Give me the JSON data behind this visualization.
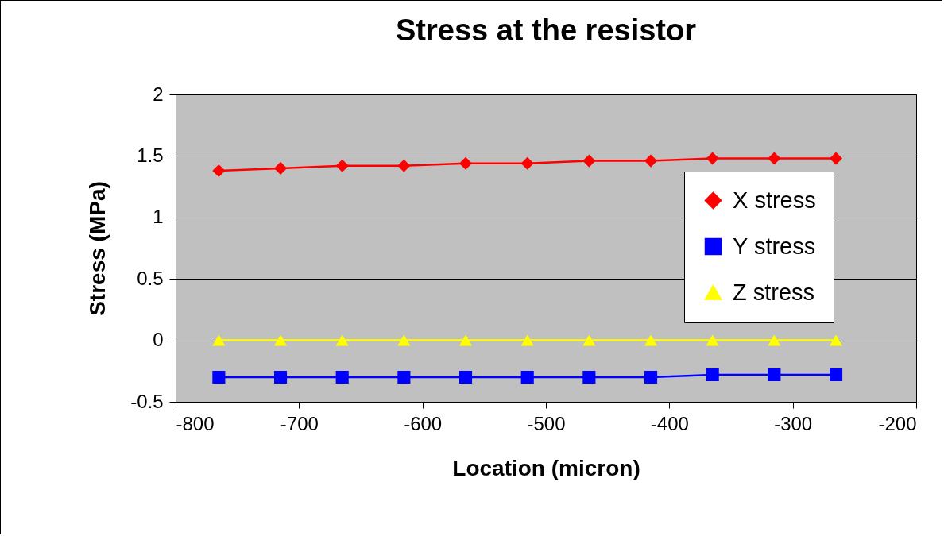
{
  "chart_data": {
    "type": "line",
    "title": "Stress at the resistor",
    "xlabel": "Location (micron)",
    "ylabel": "Stress (MPa)",
    "x": [
      -765,
      -715,
      -665,
      -615,
      -565,
      -515,
      -465,
      -415,
      -365,
      -315,
      -265
    ],
    "series": [
      {
        "name": "X stress",
        "color": "#ff0000",
        "marker": "diamond",
        "values": [
          1.38,
          1.4,
          1.42,
          1.42,
          1.44,
          1.44,
          1.46,
          1.46,
          1.48,
          1.48,
          1.48
        ]
      },
      {
        "name": "Y stress",
        "color": "#0000ff",
        "marker": "square",
        "values": [
          -0.3,
          -0.3,
          -0.3,
          -0.3,
          -0.3,
          -0.3,
          -0.3,
          -0.3,
          -0.28,
          -0.28,
          -0.28
        ]
      },
      {
        "name": "Z stress",
        "color": "#ffff00",
        "marker": "triangle",
        "values": [
          0,
          0,
          0,
          0,
          0,
          0,
          0,
          0,
          0,
          0,
          0
        ]
      }
    ],
    "xlim": [
      -800,
      -200
    ],
    "xticks": [
      -800,
      -700,
      -600,
      -500,
      -400,
      -300,
      -200
    ],
    "ylim": [
      -0.5,
      2
    ],
    "yticks": [
      -0.5,
      0,
      0.5,
      1,
      1.5,
      2
    ],
    "grid": "y",
    "legend": "right",
    "line_style": "solid"
  }
}
